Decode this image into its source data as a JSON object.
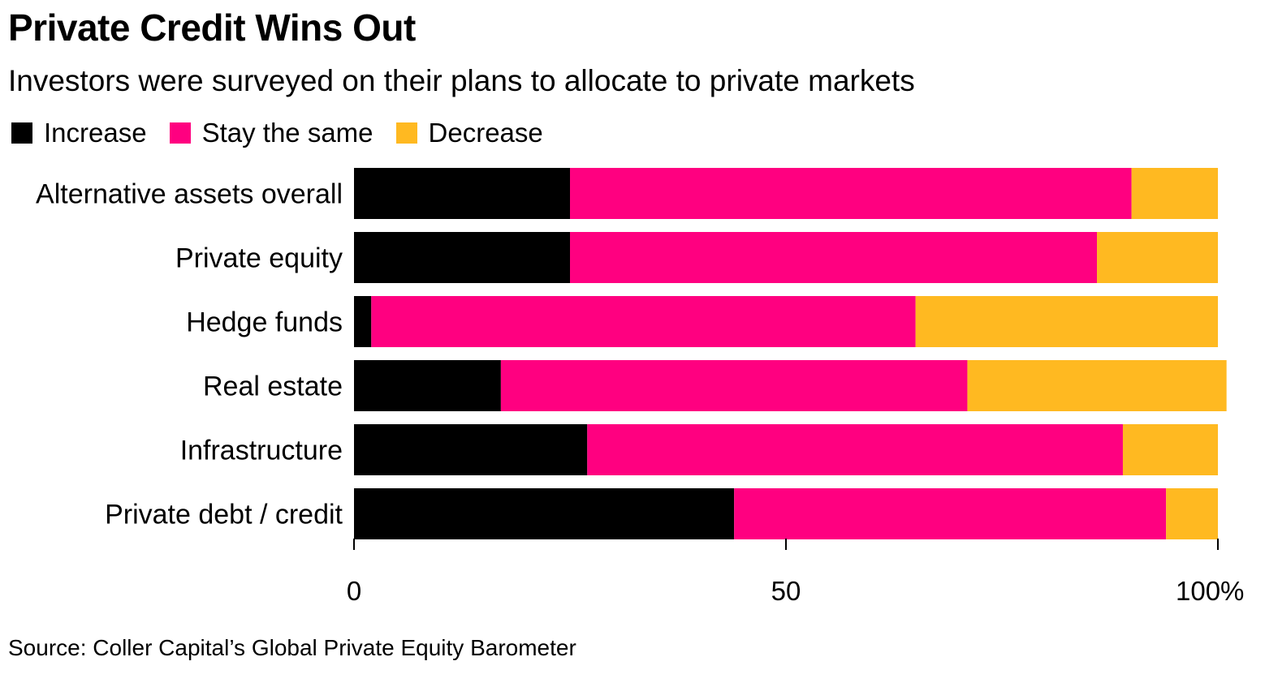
{
  "title": "Private Credit Wins Out",
  "subtitle": "Investors were surveyed on their plans to allocate to private markets",
  "source": "Source: Coller Capital’s Global Private Equity Barometer",
  "legend": [
    {
      "label": "Increase",
      "color": "#000000"
    },
    {
      "label": "Stay the same",
      "color": "#ff0080"
    },
    {
      "label": "Decrease",
      "color": "#ffb921"
    }
  ],
  "chart_data": {
    "type": "bar",
    "orientation": "horizontal",
    "stacked": true,
    "title": "Private Credit Wins Out",
    "subtitle": "Investors were surveyed on their plans to allocate to private markets",
    "categories": [
      "Alternative assets overall",
      "Private equity",
      "Hedge funds",
      "Real estate",
      "Infrastructure",
      "Private debt / credit"
    ],
    "series": [
      {
        "name": "Increase",
        "color": "#000000",
        "values": [
          25,
          25,
          2,
          17,
          27,
          44
        ]
      },
      {
        "name": "Stay the same",
        "color": "#ff0080",
        "values": [
          65,
          61,
          63,
          54,
          62,
          50
        ]
      },
      {
        "name": "Decrease",
        "color": "#ffb921",
        "values": [
          10,
          14,
          35,
          30,
          11,
          6
        ]
      }
    ],
    "xlabel": "",
    "ylabel": "",
    "xlim": [
      0,
      100
    ],
    "xticks": [
      0,
      50,
      100
    ],
    "xtick_labels": [
      "0",
      "50",
      "100%"
    ],
    "grid": false,
    "legend_position": "top-left"
  }
}
